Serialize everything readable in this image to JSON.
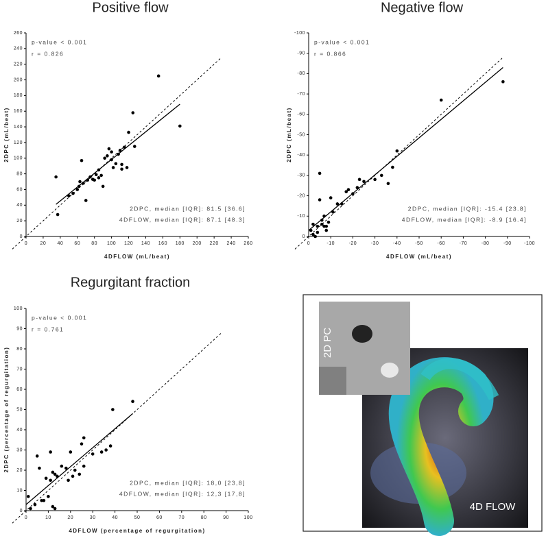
{
  "chart_data": [
    {
      "type": "scatter",
      "title": "Positive flow",
      "x_label": "4DFLOW (mL/beat)",
      "y_label": "2DPC (mL/beat)",
      "annotations": [
        "p-value < 0.001",
        "r = 0.826"
      ],
      "stats": [
        "2DPC, median [IQR]: 81.5 [36.6]",
        "4DFLOW, median [IQR]: 87.1 [48.3]"
      ],
      "color": "#000000",
      "x": [
        35,
        37,
        50,
        55,
        60,
        62,
        63,
        65,
        67,
        70,
        72,
        75,
        78,
        80,
        82,
        85,
        88,
        90,
        92,
        95,
        97,
        100,
        102,
        105,
        108,
        110,
        112,
        115,
        118,
        120,
        125,
        127,
        155,
        180,
        100,
        112,
        85
      ],
      "y": [
        76,
        28,
        52,
        55,
        60,
        64,
        70,
        97,
        68,
        46,
        72,
        76,
        73,
        72,
        79,
        85,
        78,
        64,
        100,
        103,
        112,
        98,
        88,
        93,
        105,
        110,
        92,
        114,
        88,
        133,
        158,
        115,
        205,
        141,
        108,
        86,
        75
      ],
      "fit": {
        "x": [
          35,
          180
        ],
        "y": [
          41,
          169
        ]
      },
      "xlim": [
        0,
        260
      ],
      "ylim": [
        0,
        260
      ],
      "xticks": [
        0,
        20,
        40,
        60,
        80,
        100,
        120,
        140,
        160,
        180,
        200,
        220,
        240,
        260
      ],
      "yticks": [
        0,
        20,
        40,
        60,
        80,
        100,
        120,
        140,
        160,
        180,
        200,
        220,
        240,
        260
      ]
    },
    {
      "type": "scatter",
      "title": "Negative flow",
      "x_label": "4DFLOW (mL/beat)",
      "y_label": "2DPC (mL/beat)",
      "annotations": [
        "p-value < 0.001",
        "r = 0.866"
      ],
      "stats": [
        "2DPC, median [IQR]: -15.4 [23.8]",
        "4DFLOW, median [IQR]: -8.9 [16.4]"
      ],
      "color": "#000000",
      "x": [
        -1,
        -2,
        -3,
        -4,
        -5,
        -5,
        -6,
        -7,
        -7,
        -8,
        -9,
        -10,
        -11,
        -13,
        -15,
        -17,
        -18,
        -20,
        -22,
        -23,
        -25,
        -30,
        -33,
        -36,
        -38,
        -40,
        -60,
        -88,
        -4,
        -6,
        -8,
        -2
      ],
      "y": [
        -3,
        -1,
        0,
        -5,
        -31,
        -18,
        -8,
        -5,
        -10,
        -3,
        -7,
        -19,
        -12,
        -16,
        -16,
        -22,
        -23,
        -21,
        -24,
        -28,
        -27,
        -28,
        -30,
        -26,
        -34,
        -42,
        -67,
        -76,
        -2,
        -6,
        -5,
        -6
      ],
      "fit": {
        "x": [
          0,
          -88
        ],
        "y": [
          -3,
          -83
        ]
      },
      "xlim": [
        0,
        -100
      ],
      "ylim": [
        0,
        -100
      ],
      "xticks": [
        0,
        -10,
        -20,
        -30,
        -40,
        -50,
        -60,
        -70,
        -80,
        -90,
        -100
      ],
      "yticks": [
        0,
        -10,
        -20,
        -30,
        -40,
        -50,
        -60,
        -70,
        -80,
        -90,
        -100
      ]
    },
    {
      "type": "scatter",
      "title": "Regurgitant fraction",
      "x_label": "4DFLOW (percentage of regurgitation)",
      "y_label": "2DPC (percentage of regurgitation)",
      "annotations": [
        "p-value < 0.001",
        "r = 0.761"
      ],
      "stats": [
        "2DPC, median [IQR]: 18,0 [23,8]",
        "4DFLOW, median [IQR]: 12,3 [17,8]"
      ],
      "color": "#000000",
      "x": [
        1,
        2,
        4,
        5,
        6,
        7,
        8,
        9,
        10,
        11,
        12,
        13,
        14,
        16,
        18,
        19,
        20,
        21,
        22,
        24,
        25,
        26,
        26,
        30,
        34,
        36,
        38,
        39,
        48,
        12,
        13,
        11
      ],
      "y": [
        7,
        1,
        3,
        27,
        21,
        5,
        5,
        16,
        7,
        29,
        19,
        18,
        17,
        22,
        21,
        15,
        29,
        17,
        20,
        18,
        33,
        36,
        22,
        28,
        29,
        30,
        32,
        50,
        54,
        2,
        1,
        15
      ],
      "fit": {
        "x": [
          0,
          48
        ],
        "y": [
          3,
          48
        ]
      },
      "xlim": [
        0,
        100
      ],
      "ylim": [
        0,
        100
      ],
      "xticks": [
        0,
        10,
        20,
        30,
        40,
        50,
        60,
        70,
        80,
        90,
        100
      ],
      "yticks": [
        0,
        10,
        20,
        30,
        40,
        50,
        60,
        70,
        80,
        90,
        100
      ]
    }
  ],
  "image_panel": {
    "labels": [
      "2D PC",
      "4D FLOW"
    ]
  }
}
